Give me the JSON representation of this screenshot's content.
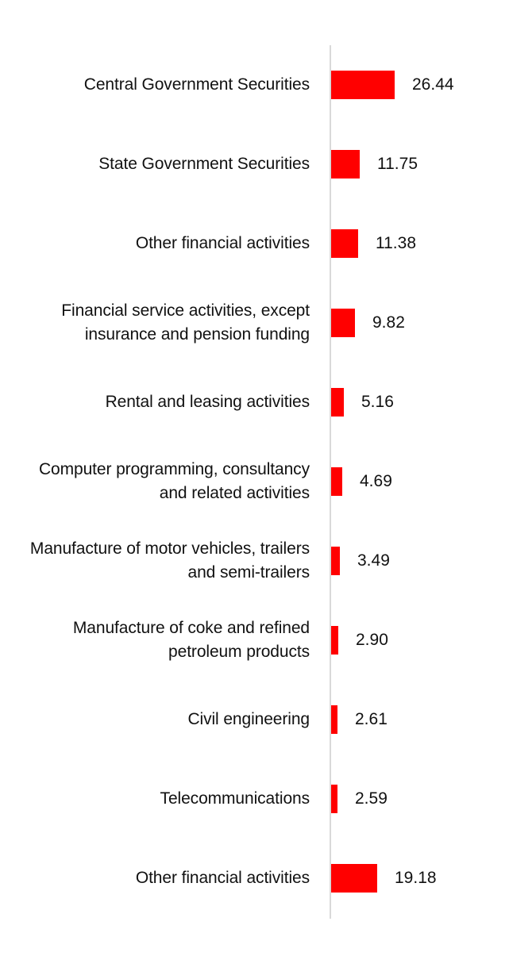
{
  "chart_data": {
    "type": "bar",
    "orientation": "horizontal",
    "title": "",
    "xlabel": "",
    "ylabel": "",
    "bar_color": "#ff0000",
    "axis_color": "#d9d9d9",
    "xlim": [
      0,
      28
    ],
    "grid": false,
    "legend": "none",
    "categories": [
      "Central Government Securities",
      "State Government Securities",
      "Other financial activities",
      "Financial service activities, except insurance and pension funding",
      "Rental and leasing activities",
      "Computer programming, consultancy and related activities",
      "Manufacture of motor vehicles, trailers and semi-trailers",
      "Manufacture of coke and refined petroleum products",
      "Civil engineering",
      "Telecommunications",
      "Other financial activities"
    ],
    "values": [
      26.44,
      11.75,
      11.38,
      9.82,
      5.16,
      4.69,
      3.49,
      2.9,
      2.61,
      2.59,
      19.18
    ],
    "value_labels": [
      "26.44",
      "11.75",
      "11.38",
      "9.82",
      "5.16",
      "4.69",
      "3.49",
      "2.90",
      "2.61",
      "2.59",
      "19.18"
    ]
  }
}
